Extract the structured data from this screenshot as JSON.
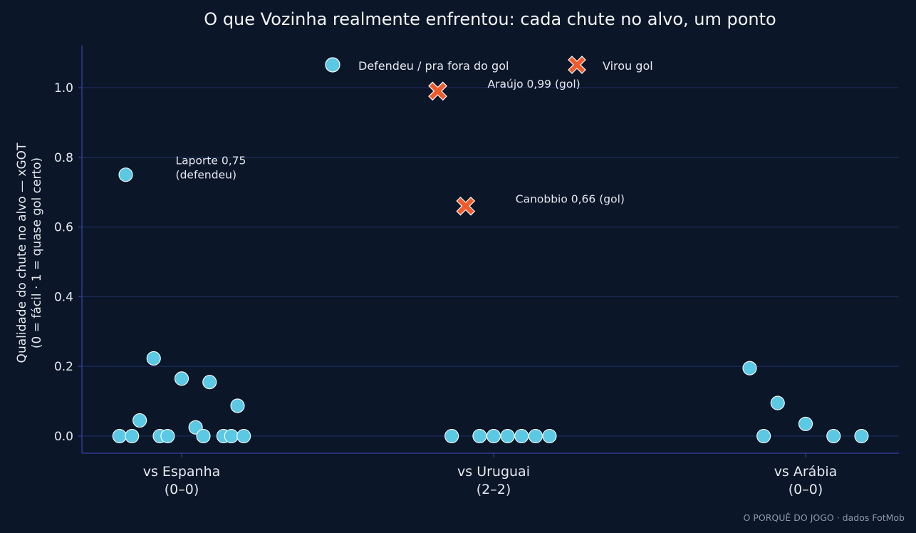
{
  "colors": {
    "background": "#0b1628",
    "grid": "#1c2a5a",
    "axis": "#2e3a8c",
    "saved": "#5bc8e4",
    "goal": "#f15a2b",
    "text": "#e6e9ef"
  },
  "chart_data": {
    "type": "scatter",
    "title": "O que Vozinha realmente enfrentou: cada chute no alvo, um ponto",
    "ylabel_line1": "Qualidade do chute no alvo — xGOT",
    "ylabel_line2": "(0 = fácil · 1 = quase gol certo)",
    "ylim": [
      -0.05,
      1.12
    ],
    "yticks": [
      0.0,
      0.2,
      0.4,
      0.6,
      0.8,
      1.0
    ],
    "ytick_labels": [
      "0.0",
      "0.2",
      "0.4",
      "0.6",
      "0.8",
      "1.0"
    ],
    "grid": true,
    "legend_position": "top-center",
    "legend": [
      {
        "label": "Defendeu / pra fora do gol",
        "marker": "circle",
        "color_key": "saved"
      },
      {
        "label": "Virou gol",
        "marker": "x",
        "color_key": "goal"
      }
    ],
    "categories": [
      {
        "line1": "vs Espanha",
        "line2": "(0–0)"
      },
      {
        "line1": "vs Uruguai",
        "line2": "(2–2)"
      },
      {
        "line1": "vs Arábia",
        "line2": "(0–0)"
      }
    ],
    "points": [
      {
        "cat": 0,
        "jitter": -0.4,
        "xgot": 0.0,
        "outcome": "saved"
      },
      {
        "cat": 0,
        "jitter": -0.32,
        "xgot": 0.0,
        "outcome": "saved"
      },
      {
        "cat": 0,
        "jitter": -0.36,
        "xgot": 0.75,
        "outcome": "saved",
        "label": "Laporte 0,75",
        "label2": "(defendeu)"
      },
      {
        "cat": 0,
        "jitter": -0.27,
        "xgot": 0.045,
        "outcome": "saved"
      },
      {
        "cat": 0,
        "jitter": -0.18,
        "xgot": 0.223,
        "outcome": "saved"
      },
      {
        "cat": 0,
        "jitter": -0.14,
        "xgot": 0.0,
        "outcome": "saved"
      },
      {
        "cat": 0,
        "jitter": -0.09,
        "xgot": 0.0,
        "outcome": "saved"
      },
      {
        "cat": 0,
        "jitter": 0.0,
        "xgot": 0.165,
        "outcome": "saved"
      },
      {
        "cat": 0,
        "jitter": 0.09,
        "xgot": 0.025,
        "outcome": "saved"
      },
      {
        "cat": 0,
        "jitter": 0.14,
        "xgot": 0.0,
        "outcome": "saved"
      },
      {
        "cat": 0,
        "jitter": 0.18,
        "xgot": 0.155,
        "outcome": "saved"
      },
      {
        "cat": 0,
        "jitter": 0.27,
        "xgot": 0.0,
        "outcome": "saved"
      },
      {
        "cat": 0,
        "jitter": 0.32,
        "xgot": 0.0,
        "outcome": "saved"
      },
      {
        "cat": 0,
        "jitter": 0.36,
        "xgot": 0.087,
        "outcome": "saved"
      },
      {
        "cat": 0,
        "jitter": 0.4,
        "xgot": 0.0,
        "outcome": "saved"
      },
      {
        "cat": 1,
        "jitter": -0.36,
        "xgot": 0.99,
        "outcome": "goal",
        "label": "Araújo 0,99 (gol)"
      },
      {
        "cat": 1,
        "jitter": -0.27,
        "xgot": 0.0,
        "outcome": "saved"
      },
      {
        "cat": 1,
        "jitter": -0.18,
        "xgot": 0.66,
        "outcome": "goal",
        "label": "Canobbio 0,66 (gol)"
      },
      {
        "cat": 1,
        "jitter": -0.09,
        "xgot": 0.0,
        "outcome": "saved"
      },
      {
        "cat": 1,
        "jitter": 0.0,
        "xgot": 0.0,
        "outcome": "saved"
      },
      {
        "cat": 1,
        "jitter": 0.09,
        "xgot": 0.0,
        "outcome": "saved"
      },
      {
        "cat": 1,
        "jitter": 0.18,
        "xgot": 0.0,
        "outcome": "saved"
      },
      {
        "cat": 1,
        "jitter": 0.27,
        "xgot": 0.0,
        "outcome": "saved"
      },
      {
        "cat": 1,
        "jitter": 0.36,
        "xgot": 0.0,
        "outcome": "saved"
      },
      {
        "cat": 2,
        "jitter": -0.36,
        "xgot": 0.195,
        "outcome": "saved"
      },
      {
        "cat": 2,
        "jitter": -0.27,
        "xgot": 0.0,
        "outcome": "saved"
      },
      {
        "cat": 2,
        "jitter": -0.18,
        "xgot": 0.095,
        "outcome": "saved"
      },
      {
        "cat": 2,
        "jitter": 0.0,
        "xgot": 0.035,
        "outcome": "saved"
      },
      {
        "cat": 2,
        "jitter": 0.18,
        "xgot": 0.0,
        "outcome": "saved"
      },
      {
        "cat": 2,
        "jitter": 0.36,
        "xgot": 0.0,
        "outcome": "saved"
      }
    ]
  },
  "credit": "O PORQUÊ DO JOGO · dados FotMob"
}
